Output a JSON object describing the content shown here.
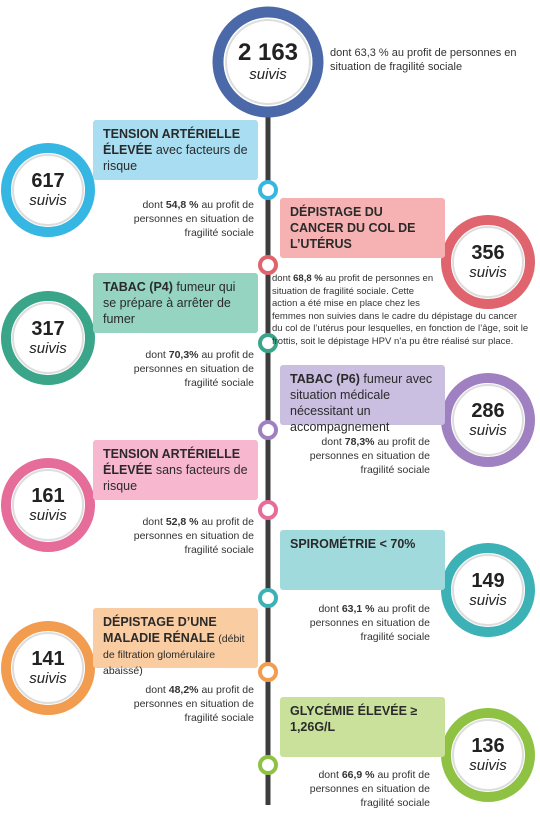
{
  "header": {
    "count": "2 163",
    "unit": "suivis",
    "desc": "dont 63,3 % au profit de personnes en situation de fragilité sociale"
  },
  "items": [
    {
      "title_bold": "TENSION ARTÉRIELLE ÉLEVÉE",
      "title_rest": "avec facteurs de risque",
      "count": 617,
      "unit": "suivis",
      "desc": {
        "pre": "dont",
        "pct": "54,8 %",
        "text": "au profit de personnes en situation de fragilité sociale"
      }
    },
    {
      "title_bold": "DÉPISTAGE DU CANCER DU COL DE L’UTÉRUS",
      "count": 356,
      "unit": "suivis",
      "desc": {
        "pre": "dont",
        "pct": "68,8 %",
        "text": "au profit de personnes en situation de fragilité sociale. Cette action a été mise en place chez les femmes non suivies dans le cadre du dépistage du cancer du col de l’utérus pour lesquelles, en fonction de l’âge, soit le frottis, soit le dépistage HPV n’a pu être réalisé sur place."
      }
    },
    {
      "title_bold": "TABAC (P4)",
      "title_rest": "fumeur qui se prépare à arrêter de fumer",
      "count": 317,
      "unit": "suivis",
      "desc": {
        "pre": "dont",
        "pct": "70,3%",
        "text": "au profit de personnes en situation de fragilité sociale"
      }
    },
    {
      "title_bold": "TABAC (P6)",
      "title_rest": "fumeur avec situation médicale nécessitant un accompagnement",
      "count": 286,
      "unit": "suivis",
      "desc": {
        "pre": "dont",
        "pct": "78,3%",
        "text": "au profit de personnes en situation de fragilité sociale"
      }
    },
    {
      "title_bold": "TENSION ARTÉRIELLE ÉLEVÉE",
      "title_rest": "sans facteurs de risque",
      "count": 161,
      "unit": "suivis",
      "desc": {
        "pre": "dont",
        "pct": "52,8 %",
        "text": "au profit de personnes en situation de fragilité sociale"
      }
    },
    {
      "title_bold": "SPIROMÉTRIE < 70%",
      "count": 149,
      "unit": "suivis",
      "desc": {
        "pre": "dont",
        "pct": "63,1 %",
        "text": "au profit de personnes en situation de fragilité sociale"
      }
    },
    {
      "title_bold": "DÉPISTAGE D’UNE MALADIE RÉNALE",
      "title_rest": "(débit de filtration glomérulaire abaissé)",
      "count": 141,
      "unit": "suivis",
      "desc": {
        "pre": "dont",
        "pct": "48,2%",
        "text": "au profit de personnes en situation de fragilité sociale"
      }
    },
    {
      "title_bold": "GLYCÉMIE ÉLEVÉE ≥ 1,26G/L",
      "count": 136,
      "unit": "suivis",
      "desc": {
        "pre": "dont",
        "pct": "66,9 %",
        "text": "au profit de personnes en situation de fragilité sociale"
      }
    }
  ]
}
